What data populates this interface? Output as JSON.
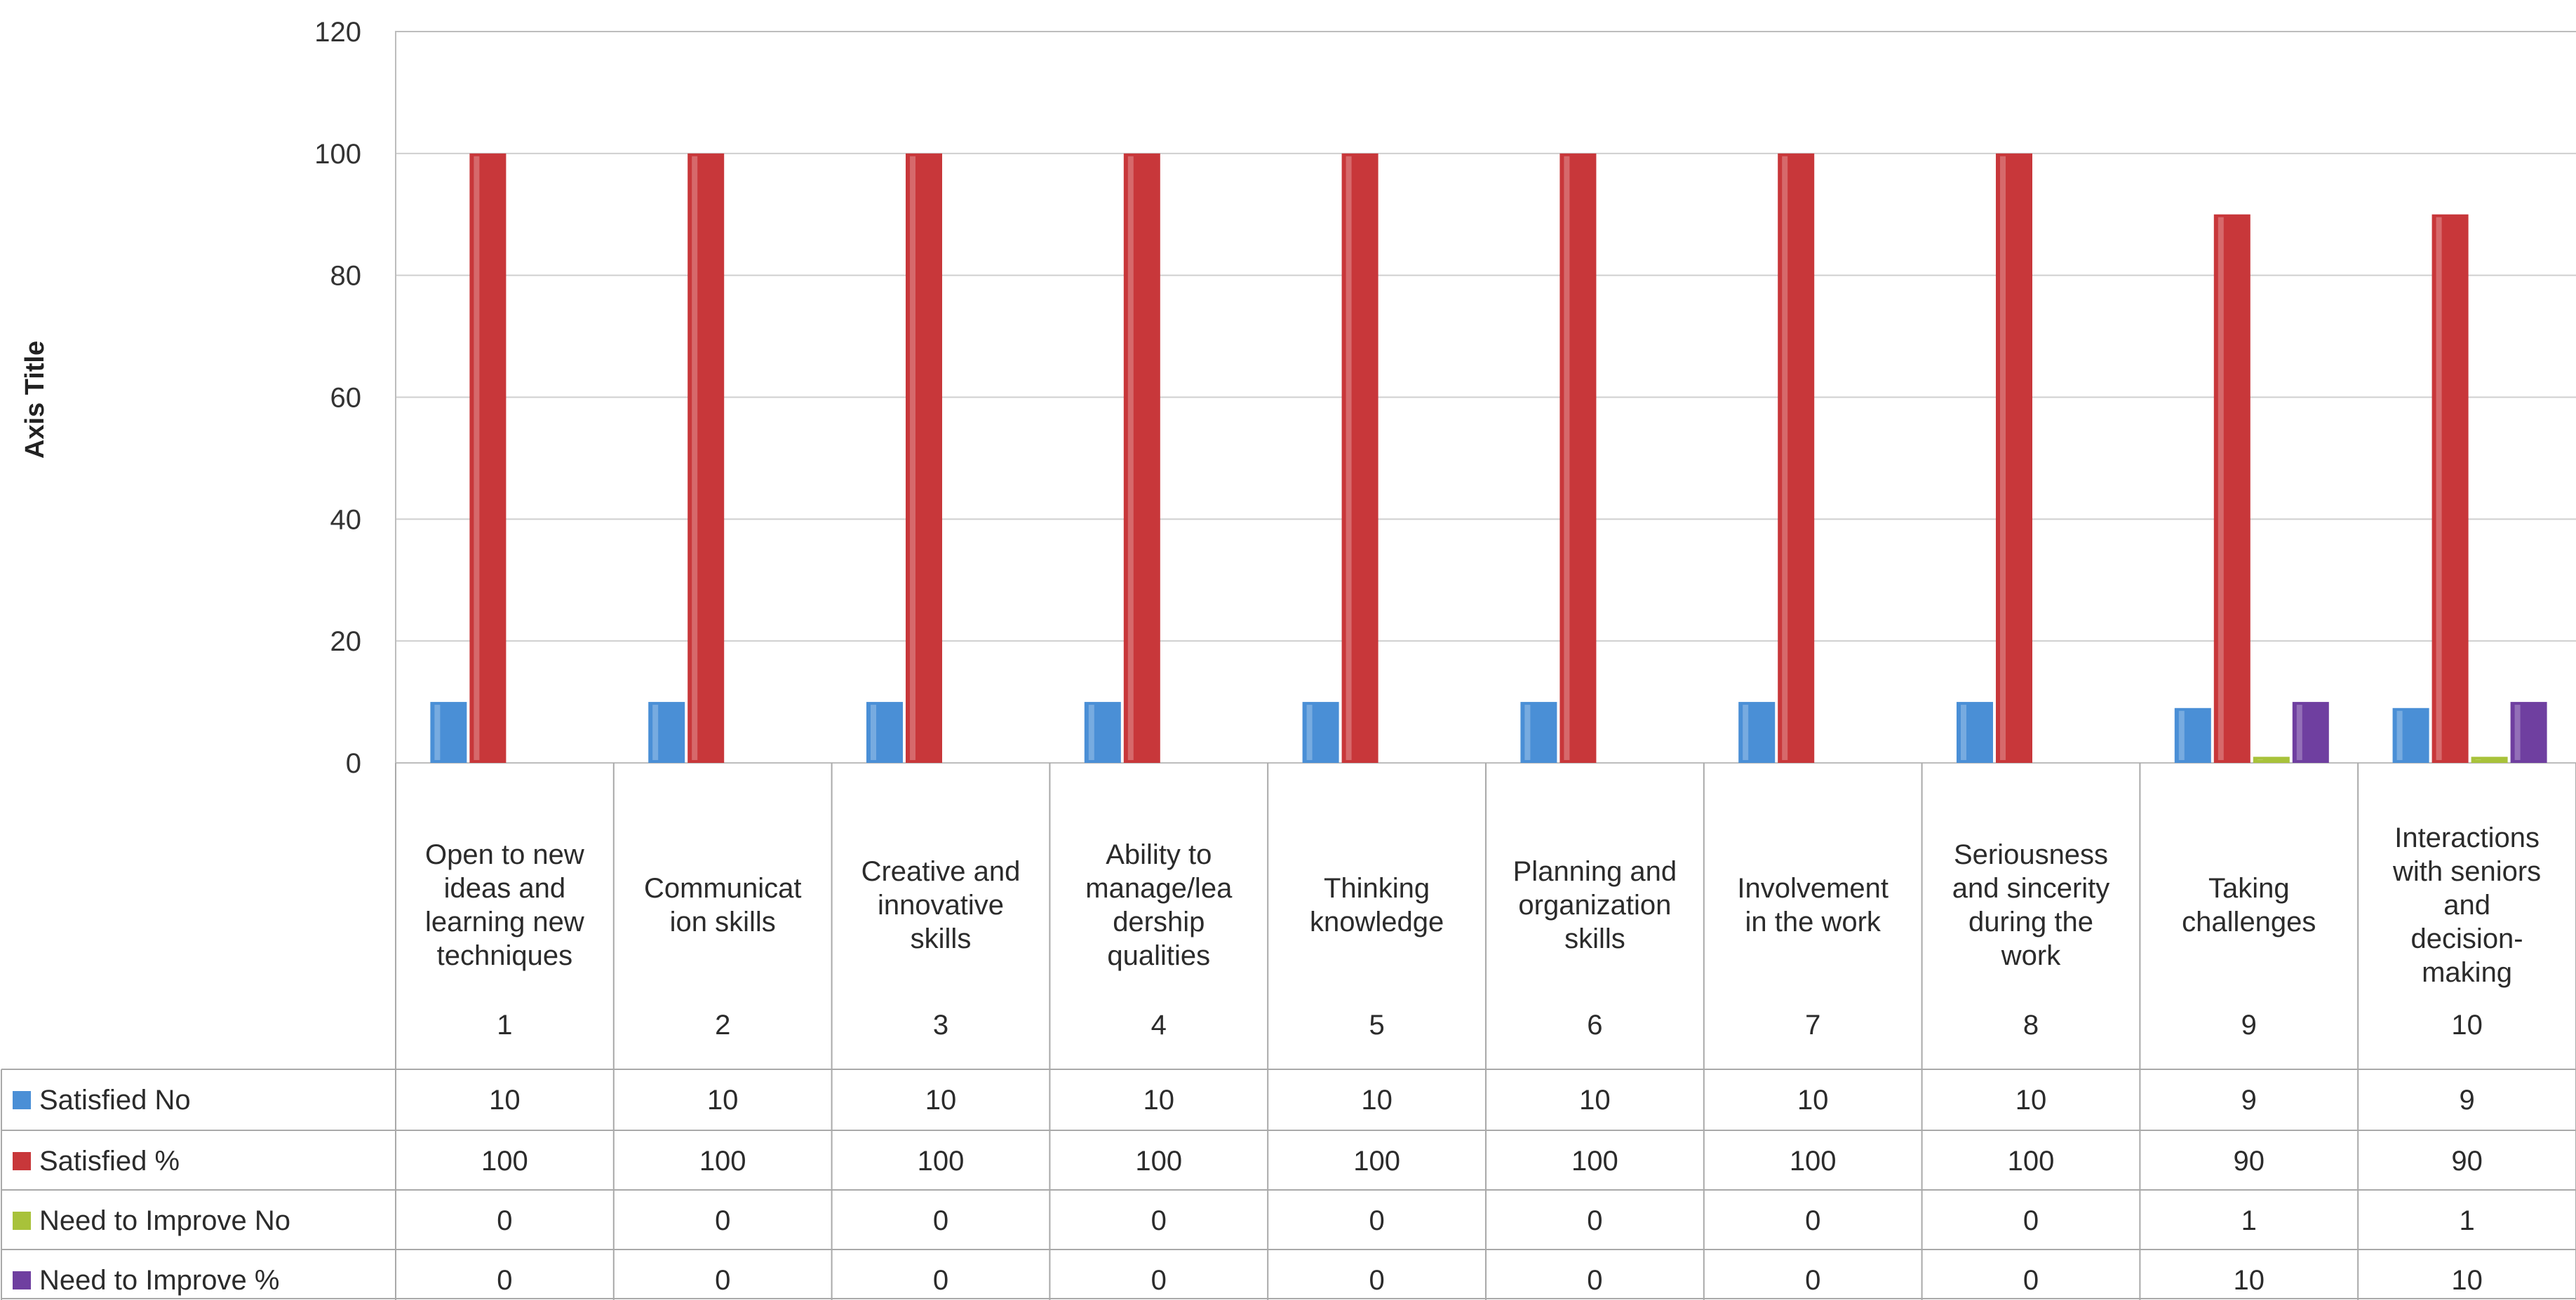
{
  "chart_data": {
    "type": "bar",
    "ylabel": "Axis Title",
    "ylim": [
      0,
      120
    ],
    "yticks": [
      "0",
      "20",
      "40",
      "60",
      "80",
      "100",
      "120"
    ],
    "grid": true,
    "legend": "data-table-left",
    "category_numbers": [
      "1",
      "2",
      "3",
      "4",
      "5",
      "6",
      "7",
      "8",
      "9",
      "10"
    ],
    "categories": [
      [
        "Open to new",
        "ideas and",
        "learning new",
        "techniques"
      ],
      [
        "Communicat",
        "ion skills"
      ],
      [
        "Creative and",
        "innovative",
        "skills"
      ],
      [
        "Ability to",
        "manage/lea",
        "dership",
        "qualities"
      ],
      [
        "Thinking",
        "knowledge"
      ],
      [
        "Planning and",
        "organization",
        "skills"
      ],
      [
        "Involvement",
        "in the work"
      ],
      [
        "Seriousness",
        "and sincerity",
        "during the",
        "work"
      ],
      [
        "Taking",
        "challenges"
      ],
      [
        "Interactions",
        "with seniors",
        "and",
        "decision-",
        "making"
      ]
    ],
    "series": [
      {
        "name": "Satisfied No",
        "color": "#4a8fd6",
        "values": [
          10,
          10,
          10,
          10,
          10,
          10,
          10,
          10,
          9,
          9
        ]
      },
      {
        "name": "Satisfied %",
        "color": "#c8373a",
        "values": [
          100,
          100,
          100,
          100,
          100,
          100,
          100,
          100,
          90,
          90
        ]
      },
      {
        "name": "Need to Improve No",
        "color": "#a8c23a",
        "values": [
          0,
          0,
          0,
          0,
          0,
          0,
          0,
          0,
          1,
          1
        ]
      },
      {
        "name": "Need to Improve %",
        "color": "#6f3fa0",
        "values": [
          0,
          0,
          0,
          0,
          0,
          0,
          0,
          0,
          10,
          10
        ]
      }
    ]
  }
}
